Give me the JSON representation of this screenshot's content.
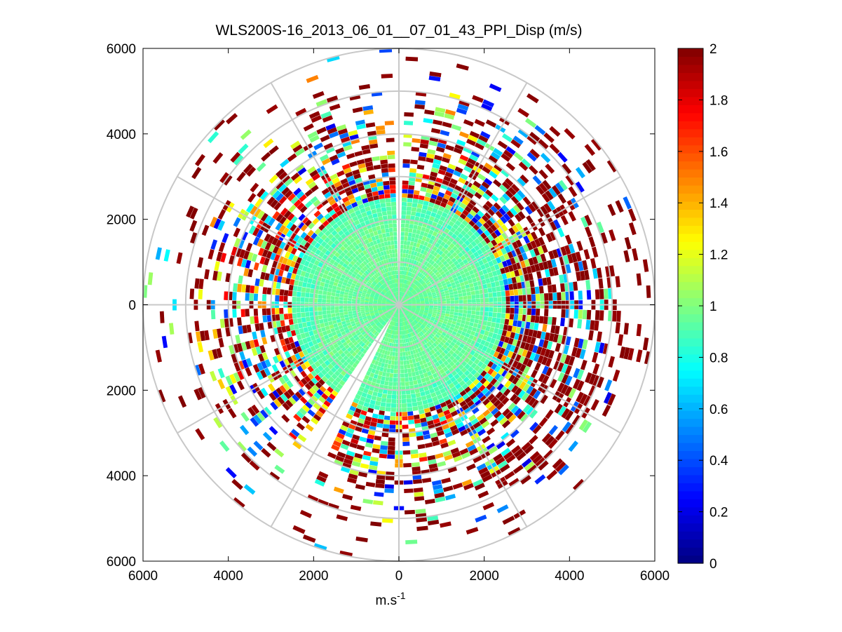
{
  "chart_data": {
    "type": "heatmap",
    "subtype": "polar-ppi",
    "title": "WLS200S-16_2013_06_01__07_01_43_PPI_Disp (m/s)",
    "xlabel": "m.s",
    "xlabel_superscript": "-1",
    "ylabel": "",
    "xlim": [
      -6000,
      6000
    ],
    "ylim": [
      -6000,
      6000
    ],
    "x_ticks": [
      {
        "value": -6000,
        "label": "6000"
      },
      {
        "value": -4000,
        "label": "4000"
      },
      {
        "value": -2000,
        "label": "2000"
      },
      {
        "value": 0,
        "label": "0"
      },
      {
        "value": 2000,
        "label": "2000"
      },
      {
        "value": 4000,
        "label": "4000"
      },
      {
        "value": 6000,
        "label": "6000"
      }
    ],
    "y_ticks": [
      {
        "value": 6000,
        "label": "6000"
      },
      {
        "value": 4000,
        "label": "4000"
      },
      {
        "value": 2000,
        "label": "2000"
      },
      {
        "value": 0,
        "label": "0"
      },
      {
        "value": -2000,
        "label": "2000"
      },
      {
        "value": -4000,
        "label": "4000"
      },
      {
        "value": -6000,
        "label": "6000"
      }
    ],
    "range_rings": [
      1000,
      2000,
      3000,
      4000,
      5000,
      6000
    ],
    "radial_spokes_deg": [
      0,
      30,
      60,
      90,
      120,
      150,
      180,
      210,
      240,
      270,
      300,
      330
    ],
    "gap_sectors": [
      {
        "from_azimuth_deg": 0,
        "to_azimuth_deg": 3
      },
      {
        "from_azimuth_deg": 205,
        "to_azimuth_deg": 215
      }
    ],
    "field_description": {
      "inner_radius_m": 2500,
      "inner_value_typical": 0.95,
      "outer_high_values_east": 2.0
    },
    "colorbar": {
      "colormap": "jet",
      "min": 0,
      "max": 2,
      "tick_values": [
        0,
        0.2,
        0.4,
        0.6,
        0.8,
        1,
        1.2,
        1.4,
        1.6,
        1.8,
        2
      ],
      "tick_labels": [
        "0",
        "0.2",
        "0.4",
        "0.6",
        "0.8",
        "1",
        "1.2",
        "1.4",
        "1.6",
        "1.8",
        "2"
      ]
    }
  }
}
